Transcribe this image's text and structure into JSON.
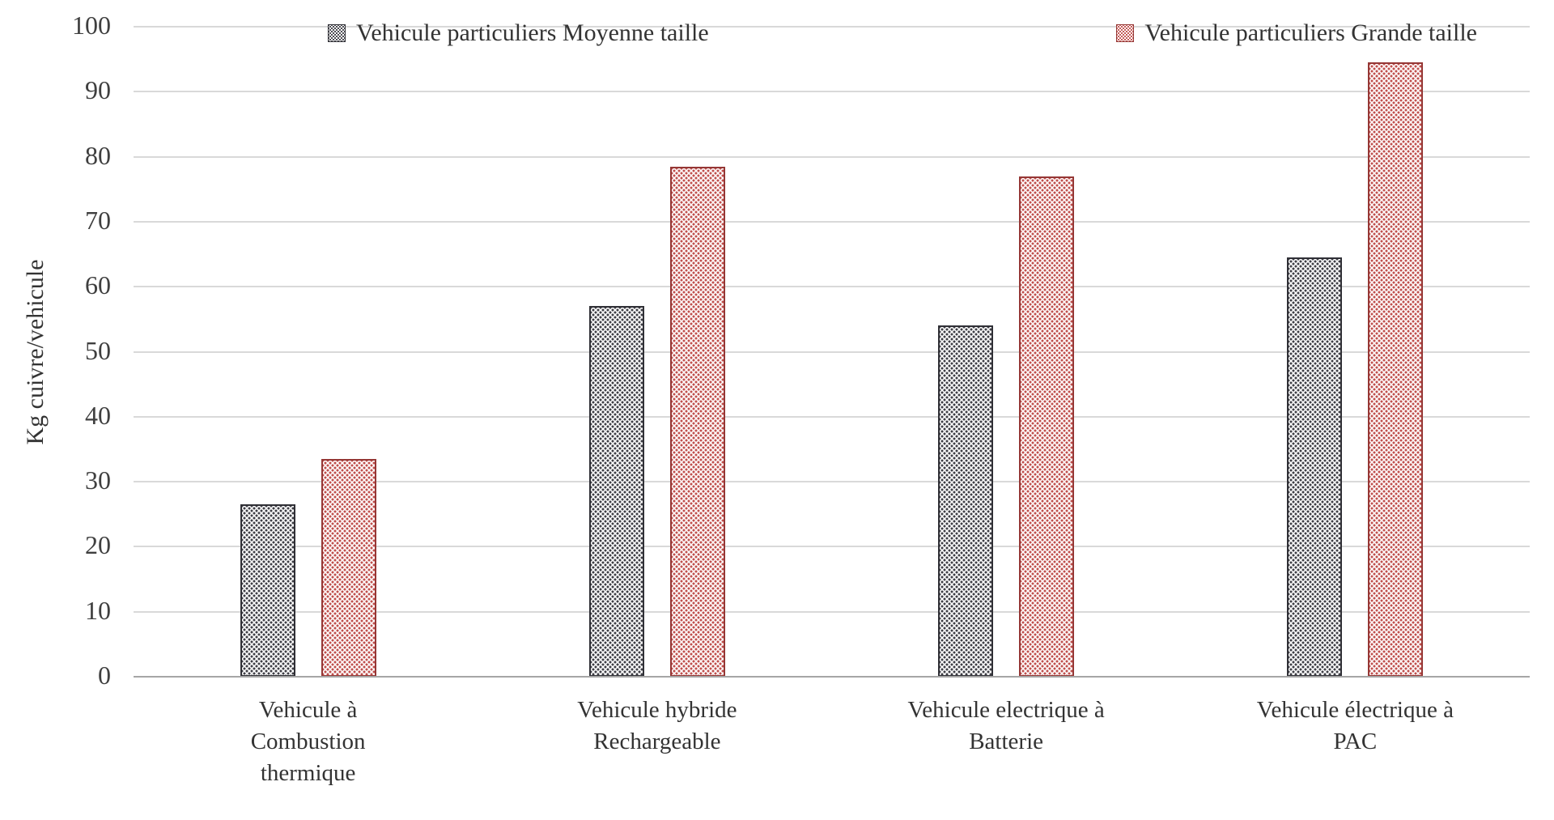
{
  "chart_data": {
    "type": "bar",
    "title": "",
    "xlabel": "",
    "ylabel": "Kg cuivre/vehicule",
    "ylim": [
      0,
      100
    ],
    "ytick_step": 10,
    "grid": true,
    "legend_position": "top",
    "categories": [
      "Vehicule à Combustion thermique",
      "Vehicule hybride Rechargeable",
      "Vehicule electrique à Batterie",
      "Vehicule électrique à PAC"
    ],
    "category_label_lines": [
      [
        "Vehicule à",
        "Combustion",
        "thermique"
      ],
      [
        "Vehicule hybride",
        "Rechargeable"
      ],
      [
        "Vehicule electrique à",
        "Batterie"
      ],
      [
        "Vehicule électrique à",
        "PAC"
      ]
    ],
    "series": [
      {
        "name": "Vehicule particuliers Moyenne taille",
        "values": [
          26.5,
          57,
          54,
          64.5
        ],
        "dot_color": "#3f3f46",
        "border_color": "#303036",
        "fill_style": "dotted-pattern"
      },
      {
        "name": "Vehicule particuliers Grande taille",
        "values": [
          33.5,
          78.5,
          77,
          94.5
        ],
        "dot_color": "#c0504d",
        "border_color": "#953735",
        "fill_style": "dotted-pattern"
      }
    ],
    "colors": {
      "gridline": "#d9d9d9",
      "axis_line": "#a6a6a6",
      "tick_label": "#3f3f3f",
      "background": "#ffffff"
    }
  }
}
